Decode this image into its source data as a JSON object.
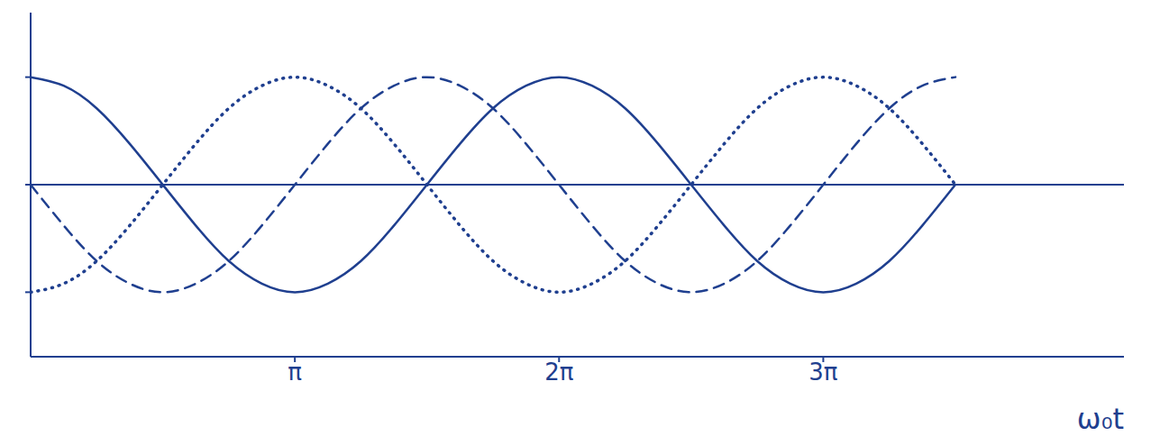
{
  "chart_data": {
    "type": "line",
    "x_label": "ω₀t",
    "x": [
      0,
      0.393,
      0.785,
      1.178,
      1.571,
      1.963,
      2.356,
      2.749,
      3.142,
      3.534,
      3.927,
      4.32,
      4.712,
      5.105,
      5.498,
      5.89,
      6.283,
      6.676,
      7.069,
      7.461,
      7.854,
      8.247,
      8.639,
      9.032,
      9.425,
      9.817,
      10.21,
      10.603,
      10.996
    ],
    "series": [
      {
        "color": "#1f3f8f",
        "line_style": "solid",
        "values": [
          1,
          0.92,
          0.71,
          0.38,
          0,
          -0.38,
          -0.71,
          -0.92,
          -1,
          -0.92,
          -0.71,
          -0.38,
          0,
          0.38,
          0.71,
          0.92,
          1,
          0.92,
          0.71,
          0.38,
          0,
          -0.38,
          -0.71,
          -0.92,
          -1,
          -0.92,
          -0.71,
          -0.38,
          0
        ]
      },
      {
        "color": "#1f3f8f",
        "line_style": "dotted",
        "values": [
          -1,
          -0.92,
          -0.71,
          -0.38,
          0,
          0.38,
          0.71,
          0.92,
          1,
          0.92,
          0.71,
          0.38,
          0,
          -0.38,
          -0.71,
          -0.92,
          -1,
          -0.92,
          -0.71,
          -0.38,
          0,
          0.38,
          0.71,
          0.92,
          1,
          0.92,
          0.71,
          0.38,
          0
        ]
      },
      {
        "color": "#1f3f8f",
        "line_style": "dashed",
        "values": [
          0,
          -0.38,
          -0.71,
          -0.92,
          -1,
          -0.92,
          -0.71,
          -0.38,
          0,
          0.38,
          0.71,
          0.92,
          1,
          0.92,
          0.71,
          0.38,
          0,
          -0.38,
          -0.71,
          -0.92,
          -1,
          -0.92,
          -0.71,
          -0.38,
          0,
          0.38,
          0.71,
          0.92,
          1
        ]
      }
    ],
    "xlim": [
      0,
      13
    ],
    "xticks": [
      {
        "value": 3.1416,
        "label": "π"
      },
      {
        "value": 6.2832,
        "label": "2π"
      },
      {
        "value": 9.4248,
        "label": "3π"
      }
    ],
    "ylim": [
      -1.6,
      1.6
    ],
    "yticks": [
      -1,
      0,
      1
    ],
    "tick_labels": "x",
    "grid": false
  }
}
